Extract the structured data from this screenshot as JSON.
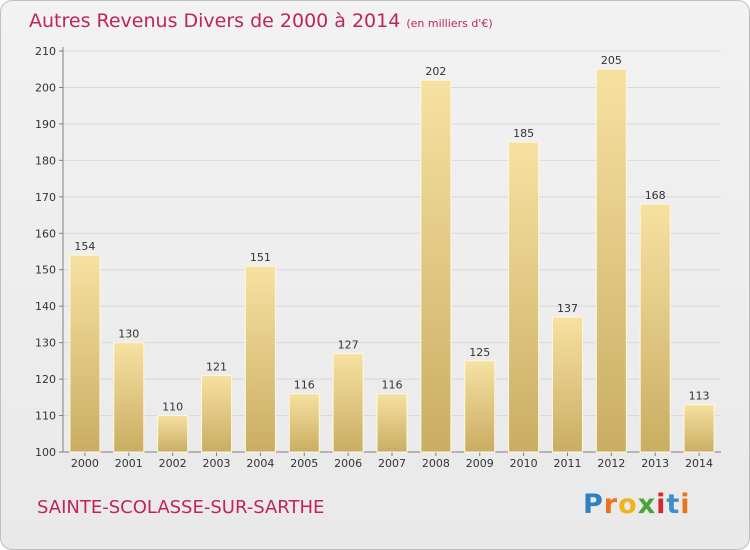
{
  "title": "Autres Revenus Divers de 2000 à 2014",
  "title_unit": "(en milliers d'€)",
  "commune": "SAINTE-SCOLASSE-SUR-SARTHE",
  "brand": "Proxiti",
  "colors": {
    "title": "#c0245a",
    "bar_light": "#f7e1a2",
    "bar_dark": "#c9ad62",
    "axis": "#808080",
    "grid": "#d9d9d9"
  },
  "chart_data": {
    "type": "bar",
    "categories": [
      "2000",
      "2001",
      "2002",
      "2003",
      "2004",
      "2005",
      "2006",
      "2007",
      "2008",
      "2009",
      "2010",
      "2011",
      "2012",
      "2013",
      "2014"
    ],
    "values": [
      154,
      130,
      110,
      121,
      151,
      116,
      127,
      116,
      202,
      125,
      185,
      137,
      205,
      168,
      113
    ],
    "ylim": [
      100,
      210
    ],
    "yticks": [
      100,
      110,
      120,
      130,
      140,
      150,
      160,
      170,
      180,
      190,
      200,
      210
    ],
    "grid": true
  }
}
